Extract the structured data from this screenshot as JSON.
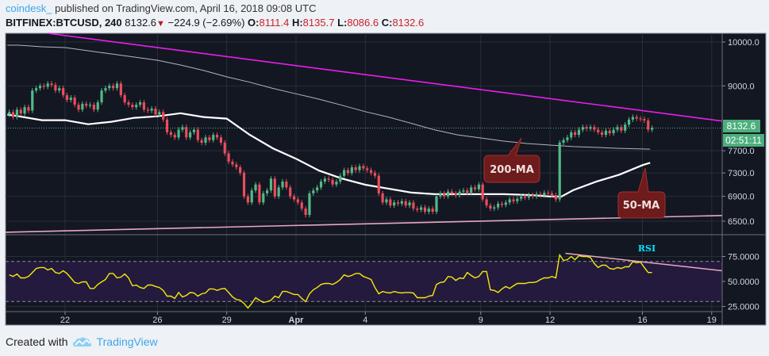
{
  "header": {
    "author": "coindesk_",
    "published": " published on TradingView.com, April 16, 2018 09:08 UTC",
    "symbol": "BITFINEX:BTCUSD, 240",
    "last": "8132.6",
    "change": "−224.9 (−2.69%)",
    "o_label": "O:",
    "o": "8111.4",
    "h_label": "H:",
    "h": "8135.7",
    "l_label": "L:",
    "l": "8086.6",
    "c_label": "C:",
    "c": "8132.6"
  },
  "footer": {
    "created_with": "Created with",
    "brand": "TradingView",
    "logo_icon": "tradingview-cloud-icon"
  },
  "colors": {
    "background": "#131722",
    "up": "#53b987",
    "down": "#eb4d5c",
    "ma50": "#ffffff",
    "ma200": "#b2b5be",
    "resistance": "#e91ee9",
    "support": "#e8a7c4",
    "rsi": "#f5e90c",
    "rsi_band": "#241a3d",
    "price_tag": "#4caf7d",
    "callout": "#6e1b1b",
    "rsi_label": "#00e5ff"
  },
  "chart_data": [
    {
      "type": "candlestick",
      "symbol": "BITFINEX:BTCUSD",
      "interval_minutes": 240,
      "start": "2018-03-19T12:00",
      "y_scale": "log",
      "ylim": [
        6300,
        10250
      ],
      "grid": true,
      "yticks": [
        "10000.0",
        "9000.0",
        "7700.0",
        "7300.0",
        "6900.0",
        "6500.0"
      ],
      "ytick_values": [
        10000,
        9000,
        7700,
        7300,
        6900,
        6500
      ],
      "xticks": [
        {
          "label": "22",
          "date": "2018-03-22"
        },
        {
          "label": "26",
          "date": "2018-03-26"
        },
        {
          "label": "29",
          "date": "2018-03-29"
        },
        {
          "label": "Apr",
          "date": "2018-04-01",
          "bold": true
        },
        {
          "label": "4",
          "date": "2018-04-04"
        },
        {
          "label": "9",
          "date": "2018-04-09"
        },
        {
          "label": "12",
          "date": "2018-04-12"
        },
        {
          "label": "16",
          "date": "2018-04-16"
        },
        {
          "label": "19",
          "date": "2018-04-19"
        }
      ],
      "first_open": 8400,
      "closes": [
        8450,
        8350,
        8500,
        8420,
        8550,
        8480,
        8900,
        8950,
        9000,
        8980,
        9050,
        9020,
        8900,
        8950,
        8800,
        8700,
        8750,
        8600,
        8500,
        8620,
        8580,
        8600,
        8500,
        8650,
        8900,
        8950,
        9000,
        8950,
        9050,
        8800,
        8650,
        8600,
        8550,
        8600,
        8650,
        8500,
        8480,
        8520,
        8400,
        8450,
        8300,
        8050,
        8000,
        7950,
        8100,
        8150,
        7950,
        8050,
        8100,
        7900,
        7850,
        7950,
        7900,
        8000,
        7950,
        7850,
        7650,
        7500,
        7450,
        7400,
        7300,
        6900,
        6800,
        7000,
        7100,
        6800,
        6950,
        7000,
        7200,
        6900,
        7050,
        7150,
        7050,
        6900,
        6850,
        6800,
        6700,
        6600,
        6950,
        7000,
        7050,
        7150,
        7200,
        7180,
        7100,
        7150,
        7250,
        7350,
        7300,
        7400,
        7350,
        7420,
        7380,
        7350,
        7300,
        7250,
        6950,
        6800,
        6850,
        6750,
        6800,
        6780,
        6820,
        6750,
        6800,
        6700,
        6680,
        6720,
        6650,
        6700,
        6650,
        6900,
        6950,
        6900,
        6980,
        6950,
        6920,
        6980,
        7000,
        6960,
        7050,
        7020,
        7100,
        6850,
        6750,
        6700,
        6720,
        6780,
        6760,
        6800,
        6850,
        6820,
        6860,
        6900,
        6880,
        6920,
        6900,
        6940,
        6920,
        6960,
        6950,
        6920,
        6850,
        7850,
        7900,
        7950,
        8050,
        8000,
        8100,
        8150,
        8120,
        8150,
        8100,
        8050,
        8000,
        8080,
        8030,
        8100,
        8150,
        8080,
        8200,
        8300,
        8350,
        8320,
        8310,
        8280,
        8100,
        8132.6
      ],
      "last_price_tag": "8132.6",
      "countdown": "02:51:11",
      "moving_averages": [
        {
          "name": "50-MA",
          "points": [
            [
              "2018-03-19T12:00",
              8400
            ],
            [
              "2018-03-20",
              8365
            ],
            [
              "2018-03-21",
              8287
            ],
            [
              "2018-03-22",
              8287
            ],
            [
              "2018-03-23",
              8207
            ],
            [
              "2018-03-24",
              8255
            ],
            [
              "2018-03-25",
              8334
            ],
            [
              "2018-03-26",
              8365
            ],
            [
              "2018-03-27",
              8427
            ],
            [
              "2018-03-28",
              8350
            ],
            [
              "2018-03-29",
              8318
            ],
            [
              "2018-03-30",
              8000
            ],
            [
              "2018-03-31",
              7745
            ],
            [
              "2018-04-01",
              7553
            ],
            [
              "2018-04-02",
              7340
            ],
            [
              "2018-04-03",
              7200
            ],
            [
              "2018-04-04",
              7095
            ],
            [
              "2018-04-05",
              7030
            ],
            [
              "2018-04-06",
              6963
            ],
            [
              "2018-04-07",
              6937
            ],
            [
              "2018-04-08",
              6937
            ],
            [
              "2018-04-09",
              6937
            ],
            [
              "2018-04-10",
              6937
            ],
            [
              "2018-04-11",
              6924
            ],
            [
              "2018-04-12",
              6898
            ],
            [
              "2018-04-12T12:00",
              6898
            ],
            [
              "2018-04-13",
              7003
            ],
            [
              "2018-04-14",
              7148
            ],
            [
              "2018-04-15",
              7270
            ],
            [
              "2018-04-16",
              7438
            ],
            [
              "2018-04-16T08:00",
              7480
            ]
          ]
        },
        {
          "name": "200-MA",
          "points": [
            [
              "2018-03-19T12:00",
              9924
            ],
            [
              "2018-03-20",
              9924
            ],
            [
              "2018-03-21",
              9886
            ],
            [
              "2018-03-22",
              9867
            ],
            [
              "2018-03-23",
              9792
            ],
            [
              "2018-03-24",
              9718
            ],
            [
              "2018-03-25",
              9644
            ],
            [
              "2018-03-26",
              9571
            ],
            [
              "2018-03-27",
              9463
            ],
            [
              "2018-03-28",
              9338
            ],
            [
              "2018-03-29",
              9198
            ],
            [
              "2018-03-30",
              9078
            ],
            [
              "2018-03-31",
              8945
            ],
            [
              "2018-04-01",
              8830
            ],
            [
              "2018-04-02",
              8716
            ],
            [
              "2018-04-03",
              8589
            ],
            [
              "2018-04-04",
              8459
            ],
            [
              "2018-04-05",
              8350
            ],
            [
              "2018-04-06",
              8224
            ],
            [
              "2018-04-07",
              8096
            ],
            [
              "2018-04-08",
              8000
            ],
            [
              "2018-04-09",
              7940
            ],
            [
              "2018-04-10",
              7880
            ],
            [
              "2018-04-11",
              7835
            ],
            [
              "2018-04-12",
              7805
            ],
            [
              "2018-04-13",
              7777
            ],
            [
              "2018-04-14",
              7762
            ],
            [
              "2018-04-15",
              7745
            ],
            [
              "2018-04-16T08:00",
              7730
            ]
          ]
        }
      ],
      "trendlines": [
        {
          "role": "resistance",
          "from": [
            "2018-03-21T06:00",
            10212
          ],
          "to": [
            "2018-04-19T11:00",
            8270
          ]
        },
        {
          "role": "support",
          "from": [
            "2018-03-19T10:00",
            6330
          ],
          "to": [
            "2018-04-19T11:00",
            6590
          ]
        }
      ],
      "annotations": [
        {
          "text": "200-MA",
          "points_to": [
            "2018-04-10T12:00",
            7920
          ]
        },
        {
          "text": "50-MA",
          "points_to": [
            "2018-04-16T04:00",
            7460
          ]
        }
      ]
    },
    {
      "type": "line",
      "name": "RSI",
      "label": "RSI",
      "ylim": [
        15,
        90
      ],
      "yticks": [
        "75.0000",
        "50.0000",
        "25.0000"
      ],
      "ytick_values": [
        75,
        50,
        25
      ],
      "bands": [
        30,
        70
      ],
      "start": "2018-03-19T12:00",
      "interval_minutes": 240,
      "values": [
        56.7,
        55,
        57.5,
        53.6,
        53.6,
        55,
        59,
        63,
        64,
        64,
        61.5,
        63,
        59,
        58,
        60.7,
        58,
        53.6,
        49,
        48,
        49.6,
        49.6,
        43,
        43,
        47,
        49.6,
        52,
        58,
        58,
        53.6,
        54.4,
        57.5,
        53.6,
        45.6,
        46.4,
        44,
        43,
        46.4,
        46.4,
        45,
        44,
        41,
        35.3,
        35.3,
        33,
        39,
        34.5,
        36,
        39,
        38.5,
        35.3,
        37.7,
        38.5,
        42.5,
        42.5,
        41,
        42.5,
        43,
        39,
        34.5,
        32,
        31.3,
        28,
        23.4,
        28,
        33.7,
        31.3,
        29,
        29.8,
        31.3,
        35.3,
        33.7,
        40,
        40,
        38.5,
        37,
        37,
        33,
        29.8,
        37.7,
        41.7,
        44,
        47,
        48,
        48,
        47,
        49,
        52,
        56.7,
        55,
        56,
        58,
        58,
        55,
        53.6,
        52,
        44,
        37.7,
        40,
        39,
        38.5,
        40,
        39,
        38.5,
        39,
        39,
        38.5,
        33.7,
        33.7,
        33.7,
        35.3,
        36,
        47,
        49,
        49.6,
        55,
        54.4,
        51,
        53.6,
        53,
        59,
        56,
        53.6,
        55,
        60,
        60,
        41.7,
        41,
        39,
        42.5,
        45,
        43,
        45.6,
        48,
        48,
        48,
        49,
        49,
        49.6,
        52,
        53.6,
        53.6,
        55,
        53.6,
        76.6,
        71,
        71.8,
        75,
        71.8,
        75.8,
        75,
        75,
        74,
        67.9,
        64,
        66.3,
        66.3,
        63,
        62.3,
        64,
        63,
        64.7,
        64.7,
        70,
        68.7,
        69.4,
        64,
        59,
        59
      ],
      "trendline": {
        "from": [
          "2018-04-12T16:00",
          78.2
        ],
        "to": [
          "2018-04-19T11:00",
          60.7
        ]
      }
    }
  ]
}
